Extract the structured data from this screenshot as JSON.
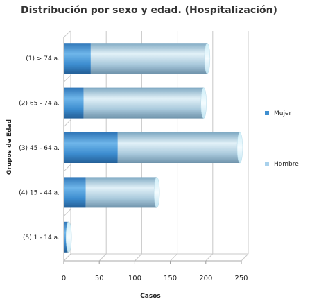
{
  "chart_data": {
    "type": "bar",
    "orientation": "horizontal",
    "stacked": true,
    "title": "Distribución por sexo y edad. (Hospitalización)",
    "xlabel": "Casos",
    "ylabel": "Grupos de Edad",
    "categories": [
      "(1) > 74 a.",
      "(2) 65 - 74 a.",
      "(3) 45 - 64 a.",
      "(4) 15 - 44 a.",
      "(5) 1 - 14 a."
    ],
    "series": [
      {
        "name": "Mujer",
        "values": [
          38,
          28,
          76,
          31,
          5
        ],
        "color": "#3f8fd0"
      },
      {
        "name": "Hombre",
        "values": [
          164,
          169,
          172,
          100,
          2
        ],
        "color": "#a9d1ec"
      }
    ],
    "xlim": [
      0,
      250
    ],
    "xticks": [
      0,
      50,
      100,
      150,
      200,
      250
    ],
    "grid": true,
    "legend_position": "right"
  }
}
